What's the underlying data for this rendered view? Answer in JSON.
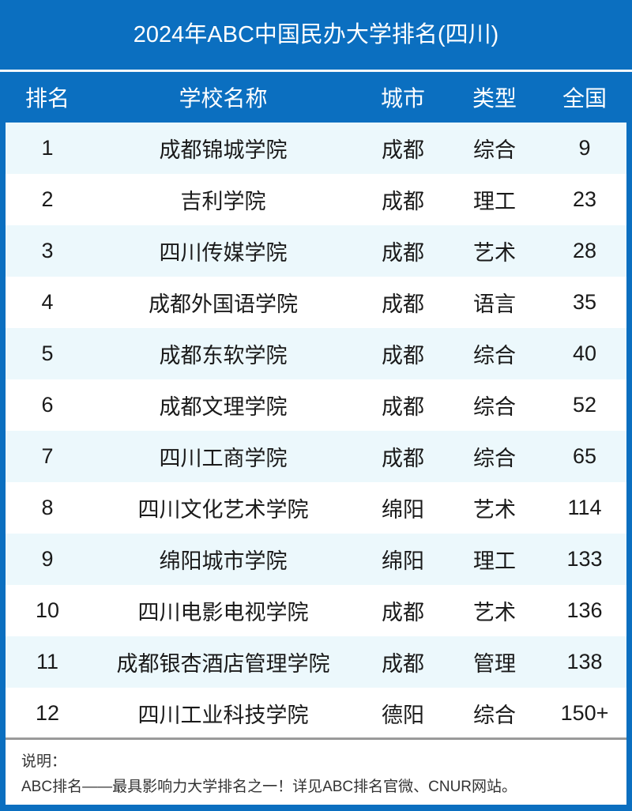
{
  "title": "2024年ABC中国民办大学排名(四川)",
  "columns": [
    "排名",
    "学校名称",
    "城市",
    "类型",
    "全国"
  ],
  "rows": [
    [
      "1",
      "成都锦城学院",
      "成都",
      "综合",
      "9"
    ],
    [
      "2",
      "吉利学院",
      "成都",
      "理工",
      "23"
    ],
    [
      "3",
      "四川传媒学院",
      "成都",
      "艺术",
      "28"
    ],
    [
      "4",
      "成都外国语学院",
      "成都",
      "语言",
      "35"
    ],
    [
      "5",
      "成都东软学院",
      "成都",
      "综合",
      "40"
    ],
    [
      "6",
      "成都文理学院",
      "成都",
      "综合",
      "52"
    ],
    [
      "7",
      "四川工商学院",
      "成都",
      "综合",
      "65"
    ],
    [
      "8",
      "四川文化艺术学院",
      "绵阳",
      "艺术",
      "114"
    ],
    [
      "9",
      "绵阳城市学院",
      "绵阳",
      "理工",
      "133"
    ],
    [
      "10",
      "四川电影电视学院",
      "成都",
      "艺术",
      "136"
    ],
    [
      "11",
      "成都银杏酒店管理学院",
      "成都",
      "管理",
      "138"
    ],
    [
      "12",
      "四川工业科技学院",
      "德阳",
      "综合",
      "150+"
    ]
  ],
  "footer": {
    "label": "说明：",
    "note": "ABC排名——最具影响力大学排名之一！详见ABC排名官微、CNUR网站。"
  },
  "colors": {
    "brand": "#0b6fc0",
    "row_alt": "#ecf8fc"
  }
}
